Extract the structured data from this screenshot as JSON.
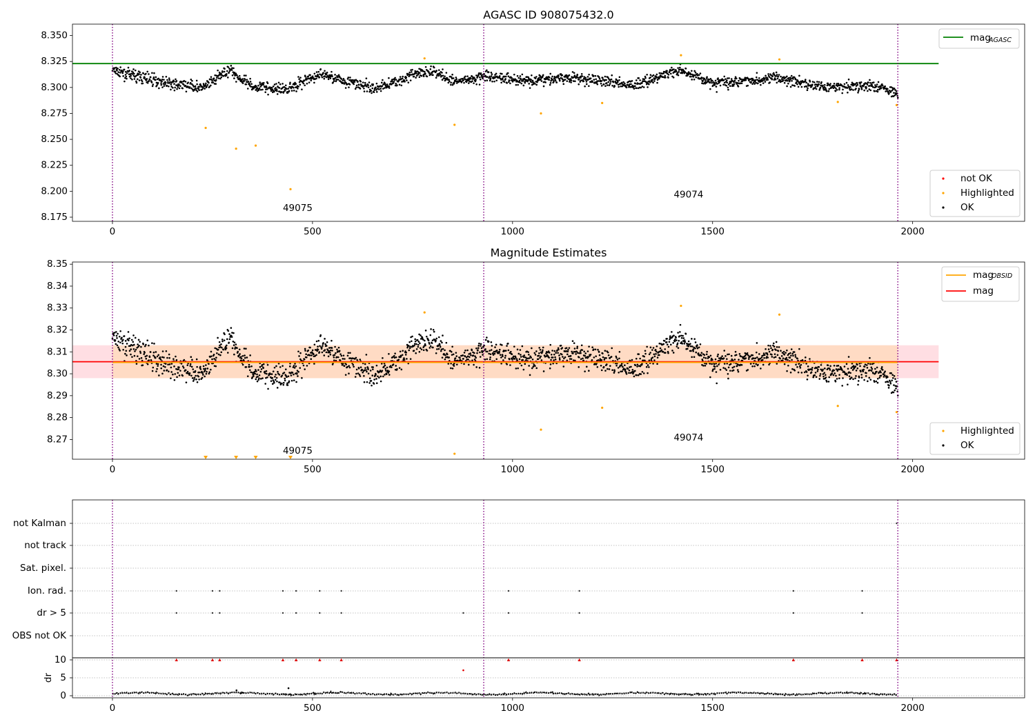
{
  "chart_data": [
    {
      "type": "scatter",
      "title": "AGASC ID 908075432.0",
      "xlim": [
        -100,
        2280
      ],
      "ylim": [
        8.171,
        8.361
      ],
      "xticks": [
        "0",
        "500",
        "1000",
        "1500",
        "2000"
      ],
      "yticks": [
        "8.175",
        "8.200",
        "8.225",
        "8.250",
        "8.275",
        "8.300",
        "8.325",
        "8.350"
      ],
      "reference_line": {
        "name": "mag_AGASC",
        "y": 8.323,
        "x": [
          -100,
          2065
        ],
        "color": "#008000"
      },
      "obsid_boundaries": [
        0,
        928,
        1963
      ],
      "boundary_color": "#800080",
      "annotations": [
        {
          "text": "49075",
          "x": 463,
          "y": 8.181
        },
        {
          "text": "49074",
          "x": 1440,
          "y": 8.194
        }
      ],
      "legend_line": {
        "label": "mag",
        "sub": "AGASC",
        "color": "#008000",
        "position": "upper right"
      },
      "legend_points": [
        {
          "label": "not OK",
          "color": "#ff0000"
        },
        {
          "label": "Highlighted",
          "color": "#ffa500"
        },
        {
          "label": "OK",
          "color": "#000000"
        }
      ],
      "legend_points_position": "lower right",
      "ok_series": {
        "name": "OK",
        "x_range": [
          0,
          1963
        ],
        "trend_y": [
          [
            0,
            8.316
          ],
          [
            150,
            8.303
          ],
          [
            230,
            8.3
          ],
          [
            290,
            8.318
          ],
          [
            340,
            8.302
          ],
          [
            430,
            8.298
          ],
          [
            520,
            8.313
          ],
          [
            600,
            8.304
          ],
          [
            660,
            8.299
          ],
          [
            760,
            8.313
          ],
          [
            800,
            8.316
          ],
          [
            850,
            8.306
          ],
          [
            940,
            8.311
          ],
          [
            1050,
            8.306
          ],
          [
            1150,
            8.31
          ],
          [
            1300,
            8.302
          ],
          [
            1420,
            8.317
          ],
          [
            1500,
            8.304
          ],
          [
            1650,
            8.309
          ],
          [
            1800,
            8.3
          ],
          [
            1900,
            8.302
          ],
          [
            1963,
            8.294
          ]
        ],
        "scatter": 0.0045
      },
      "highlighted": [
        {
          "x": 233,
          "y": 8.261
        },
        {
          "x": 309,
          "y": 8.241
        },
        {
          "x": 358,
          "y": 8.244
        },
        {
          "x": 445,
          "y": 8.202
        },
        {
          "x": 780,
          "y": 8.328
        },
        {
          "x": 855,
          "y": 8.264
        },
        {
          "x": 1071,
          "y": 8.275
        },
        {
          "x": 1224,
          "y": 8.285
        },
        {
          "x": 1421,
          "y": 8.331
        },
        {
          "x": 1667,
          "y": 8.327
        },
        {
          "x": 1813,
          "y": 8.286
        },
        {
          "x": 1960,
          "y": 8.283
        }
      ]
    },
    {
      "type": "scatter",
      "title": "Magnitude Estimates",
      "xlim": [
        -100,
        2280
      ],
      "ylim": [
        8.261,
        8.351
      ],
      "xticks": [
        "0",
        "500",
        "1000",
        "1500",
        "2000"
      ],
      "yticks": [
        "8.27",
        "8.28",
        "8.29",
        "8.30",
        "8.31",
        "8.32",
        "8.33",
        "8.34",
        "8.35"
      ],
      "mag_line": {
        "name": "mag",
        "y": 8.3055,
        "color": "#ff0000"
      },
      "mag_band": {
        "y": [
          8.298,
          8.313
        ],
        "color": "#ffb6c1"
      },
      "mag_obsid_line": {
        "name": "mag_OBSID",
        "y": 8.3052,
        "color": "#ffa500"
      },
      "mag_obsid_band": {
        "y": [
          8.298,
          8.313
        ],
        "color": "#ffdab9"
      },
      "obsid_boundaries": [
        0,
        928,
        1963
      ],
      "annotations": [
        {
          "text": "49075",
          "x": 463,
          "y": 8.2635
        },
        {
          "text": "49074",
          "x": 1440,
          "y": 8.2695
        }
      ],
      "legend_lines": [
        {
          "label": "mag",
          "sub": "OBSID",
          "color": "#ffa500"
        },
        {
          "label": "mag",
          "sub": "",
          "color": "#ff0000"
        }
      ],
      "legend_lines_position": "upper right",
      "legend_points": [
        {
          "label": "Highlighted",
          "color": "#ffa500"
        },
        {
          "label": "OK",
          "color": "#000000"
        }
      ],
      "legend_points_position": "lower right",
      "highlighted": [
        {
          "x": 780,
          "y": 8.328
        },
        {
          "x": 855,
          "y": 8.2635
        },
        {
          "x": 1071,
          "y": 8.2745
        },
        {
          "x": 1224,
          "y": 8.2845
        },
        {
          "x": 1421,
          "y": 8.331
        },
        {
          "x": 1667,
          "y": 8.327
        },
        {
          "x": 1813,
          "y": 8.2853
        },
        {
          "x": 1960,
          "y": 8.2825
        }
      ],
      "off_scale_markers_x": [
        233,
        309,
        358,
        445
      ]
    },
    {
      "type": "scatter",
      "title": "",
      "xlim": [
        -100,
        2280
      ],
      "xticks": [
        "0",
        "500",
        "1000",
        "1500",
        "2000"
      ],
      "flag_rows": [
        "not Kalman",
        "not track",
        "Sat. pixel.",
        "Ion. rad.",
        "dr > 5",
        "OBS not OK"
      ],
      "flags": {
        "Ion. rad.": [
          160,
          250,
          268,
          426,
          459,
          518,
          572,
          990,
          1167,
          1702,
          1874
        ],
        "dr > 5": [
          160,
          250,
          268,
          426,
          459,
          518,
          572,
          877,
          990,
          1167,
          1702,
          1874
        ],
        "not Kalman": [
          1960
        ]
      },
      "dr_ylabel": "dr",
      "dr_ylim": [
        -0.5,
        10.5
      ],
      "dr_yticks": [
        "0",
        "5",
        "10"
      ],
      "dr_clipped": [
        {
          "x": 160,
          "y": 10
        },
        {
          "x": 250,
          "y": 10
        },
        {
          "x": 268,
          "y": 10
        },
        {
          "x": 426,
          "y": 10
        },
        {
          "x": 459,
          "y": 10
        },
        {
          "x": 518,
          "y": 10
        },
        {
          "x": 572,
          "y": 10
        },
        {
          "x": 990,
          "y": 10
        },
        {
          "x": 1167,
          "y": 10
        },
        {
          "x": 1702,
          "y": 10
        },
        {
          "x": 1874,
          "y": 10
        },
        {
          "x": 1960,
          "y": 10
        }
      ],
      "dr_other": [
        {
          "x": 877,
          "y": 7.1
        }
      ],
      "dr_base": 0.6
    }
  ]
}
